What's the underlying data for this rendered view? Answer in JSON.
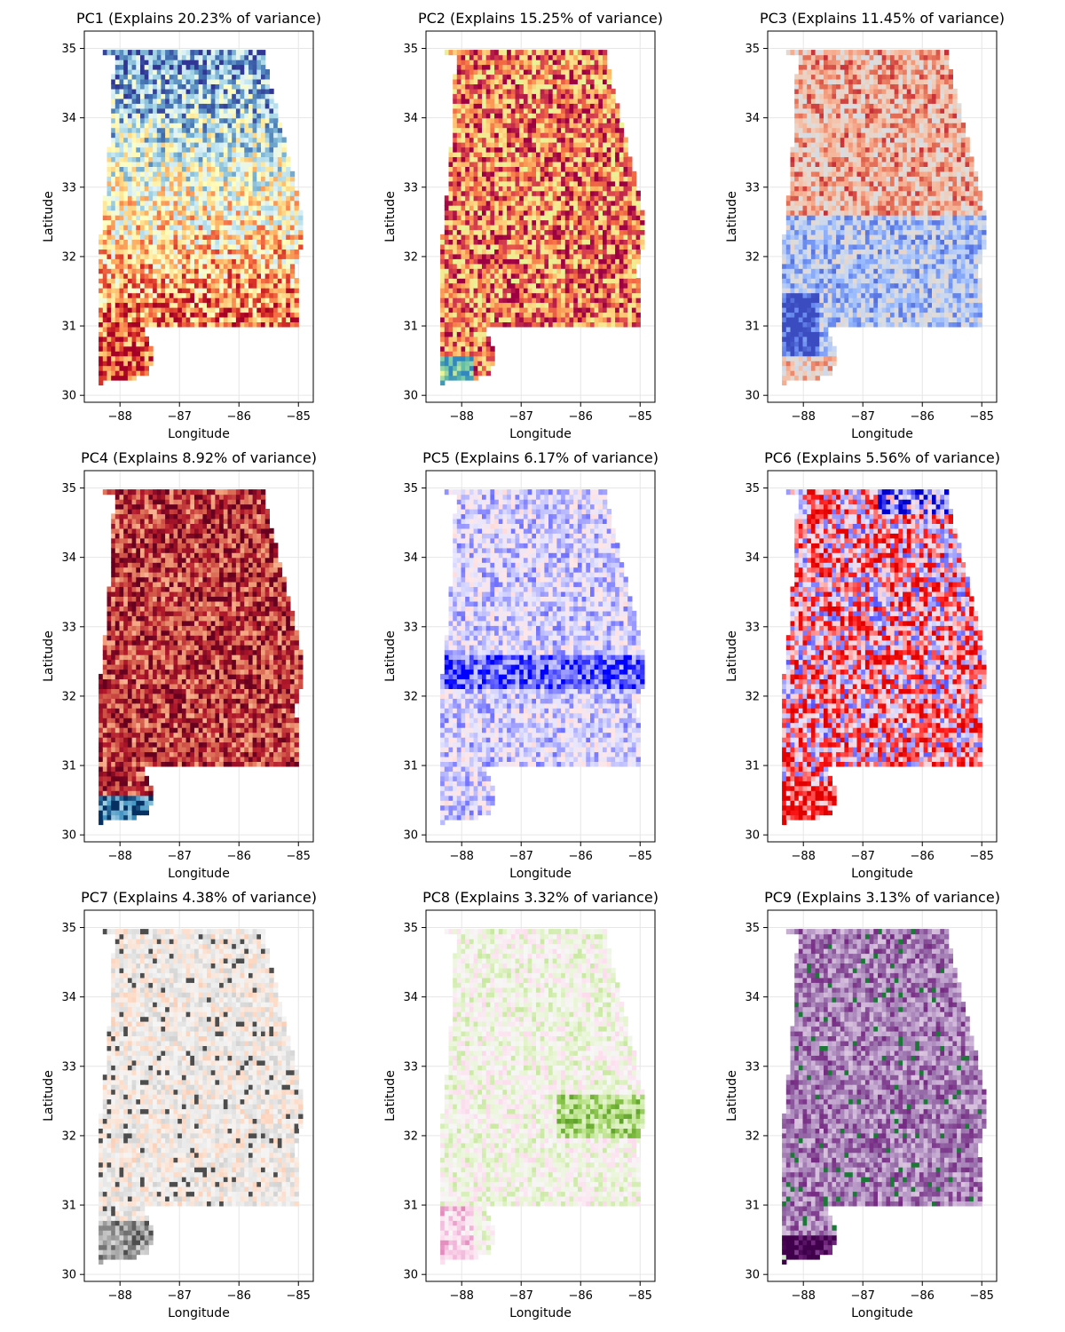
{
  "chart_data": [
    {
      "type": "heatmap",
      "title": "PC1 (Explains 20.23% of variance)",
      "xlabel": "Longitude",
      "ylabel": "Latitude",
      "x_ticks": [
        "−88",
        "−87",
        "−86",
        "−85"
      ],
      "y_ticks": [
        "30",
        "31",
        "32",
        "33",
        "34",
        "35"
      ],
      "xlim": [
        -88.6,
        -84.75
      ],
      "ylim": [
        29.9,
        35.25
      ],
      "grid": true,
      "colormap": "RdYlBu",
      "colors": [
        "#a50026",
        "#d73027",
        "#f46d43",
        "#fdae61",
        "#fee090",
        "#ffffbf",
        "#e0f3f8",
        "#abd9e9",
        "#74add1",
        "#4575b4",
        "#313695"
      ]
    },
    {
      "type": "heatmap",
      "title": "PC2 (Explains 15.25% of variance)",
      "xlabel": "Longitude",
      "ylabel": "Latitude",
      "x_ticks": [
        "−88",
        "−87",
        "−86",
        "−85"
      ],
      "y_ticks": [
        "30",
        "31",
        "32",
        "33",
        "34",
        "35"
      ],
      "xlim": [
        -88.6,
        -84.75
      ],
      "ylim": [
        29.9,
        35.25
      ],
      "grid": true,
      "colormap": "Spectral",
      "colors": [
        "#9e0142",
        "#d53e4f",
        "#f46d43",
        "#fdae61",
        "#fee08b",
        "#e6f598",
        "#abdda4",
        "#66c2a5",
        "#3288bd"
      ]
    },
    {
      "type": "heatmap",
      "title": "PC3 (Explains 11.45% of variance)",
      "xlabel": "Longitude",
      "ylabel": "Latitude",
      "x_ticks": [
        "−88",
        "−87",
        "−86",
        "−85"
      ],
      "y_ticks": [
        "30",
        "31",
        "32",
        "33",
        "34",
        "35"
      ],
      "xlim": [
        -88.6,
        -84.75
      ],
      "ylim": [
        29.9,
        35.25
      ],
      "grid": true,
      "colormap": "coolwarm",
      "colors": [
        "#3b4cc0",
        "#6788ee",
        "#9abbff",
        "#c9d7f0",
        "#dddddd",
        "#f2cbb7",
        "#f7a889",
        "#e26952",
        "#b40426"
      ]
    },
    {
      "type": "heatmap",
      "title": "PC4 (Explains 8.92% of variance)",
      "xlabel": "Longitude",
      "ylabel": "Latitude",
      "x_ticks": [
        "−88",
        "−87",
        "−86",
        "−85"
      ],
      "y_ticks": [
        "30",
        "31",
        "32",
        "33",
        "34",
        "35"
      ],
      "xlim": [
        -88.6,
        -84.75
      ],
      "ylim": [
        29.9,
        35.25
      ],
      "grid": true,
      "colormap": "RdBu",
      "colors": [
        "#67001f",
        "#b2182b",
        "#d6604d",
        "#f4a582",
        "#fddbc7",
        "#f7f7f7",
        "#92c5de",
        "#4393c3",
        "#053061"
      ]
    },
    {
      "type": "heatmap",
      "title": "PC5 (Explains 6.17% of variance)",
      "xlabel": "Longitude",
      "ylabel": "Latitude",
      "x_ticks": [
        "−88",
        "−87",
        "−86",
        "−85"
      ],
      "y_ticks": [
        "30",
        "31",
        "32",
        "33",
        "34",
        "35"
      ],
      "xlim": [
        -88.6,
        -84.75
      ],
      "ylim": [
        29.9,
        35.25
      ],
      "grid": true,
      "colormap": "bwr",
      "colors": [
        "#0000ff",
        "#6666ff",
        "#b3b3ff",
        "#e6e6ff",
        "#ffe6e6",
        "#ffb3b3",
        "#ff6666",
        "#ff0000"
      ]
    },
    {
      "type": "heatmap",
      "title": "PC6 (Explains 5.56% of variance)",
      "xlabel": "Longitude",
      "ylabel": "Latitude",
      "x_ticks": [
        "−88",
        "−87",
        "−86",
        "−85"
      ],
      "y_ticks": [
        "30",
        "31",
        "32",
        "33",
        "34",
        "35"
      ],
      "xlim": [
        -88.6,
        -84.75
      ],
      "ylim": [
        29.9,
        35.25
      ],
      "grid": true,
      "colormap": "bwr",
      "colors": [
        "#0000cc",
        "#4d4dff",
        "#9999ff",
        "#e6e6ff",
        "#ffcccc",
        "#ff6666",
        "#ff1a1a",
        "#e00000"
      ]
    },
    {
      "type": "heatmap",
      "title": "PC7 (Explains 4.38% of variance)",
      "xlabel": "Longitude",
      "ylabel": "Latitude",
      "x_ticks": [
        "−88",
        "−87",
        "−86",
        "−85"
      ],
      "y_ticks": [
        "30",
        "31",
        "32",
        "33",
        "34",
        "35"
      ],
      "xlim": [
        -88.6,
        -84.75
      ],
      "ylim": [
        29.9,
        35.25
      ],
      "grid": true,
      "colormap": "RdGy",
      "colors": [
        "#b2182b",
        "#d6604d",
        "#f4a582",
        "#fddbc7",
        "#f5f5f5",
        "#e0e0e0",
        "#bababa",
        "#878787",
        "#4d4d4d"
      ]
    },
    {
      "type": "heatmap",
      "title": "PC8 (Explains 3.32% of variance)",
      "xlabel": "Longitude",
      "ylabel": "Latitude",
      "x_ticks": [
        "−88",
        "−87",
        "−86",
        "−85"
      ],
      "y_ticks": [
        "30",
        "31",
        "32",
        "33",
        "34",
        "35"
      ],
      "xlim": [
        -88.6,
        -84.75
      ],
      "ylim": [
        29.9,
        35.25
      ],
      "grid": true,
      "colormap": "PiYG",
      "colors": [
        "#c51b7d",
        "#de77ae",
        "#f1b6da",
        "#fde0ef",
        "#f7f7f7",
        "#e6f5d0",
        "#b8e186",
        "#7fbc41",
        "#4d9221"
      ]
    },
    {
      "type": "heatmap",
      "title": "PC9 (Explains 3.13% of variance)",
      "xlabel": "Longitude",
      "ylabel": "Latitude",
      "x_ticks": [
        "−88",
        "−87",
        "−86",
        "−85"
      ],
      "y_ticks": [
        "30",
        "31",
        "32",
        "33",
        "34",
        "35"
      ],
      "xlim": [
        -88.6,
        -84.75
      ],
      "ylim": [
        29.9,
        35.25
      ],
      "grid": true,
      "colormap": "PRGn",
      "colors": [
        "#40004b",
        "#762a83",
        "#9970ab",
        "#c2a5cf",
        "#e7d4e8",
        "#f7f7f7",
        "#d9f0d3",
        "#a6dba0",
        "#1b7837"
      ]
    }
  ]
}
